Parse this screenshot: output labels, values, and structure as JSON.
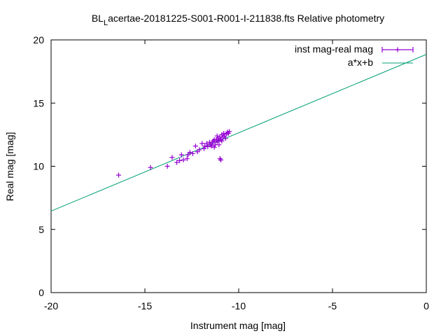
{
  "chart_data": {
    "type": "scatter",
    "title_prefix": "BL",
    "title_sub": "L",
    "title_rest": "acertae-20181225-S001-R001-I-211838.fts Relative photometry",
    "xlabel": "Instrument mag [mag]",
    "ylabel": "Real mag [mag]",
    "xlim": [
      -20,
      0
    ],
    "ylim": [
      0,
      20
    ],
    "x_ticks": [
      -20,
      -15,
      -10,
      -5,
      0
    ],
    "y_ticks": [
      0,
      5,
      10,
      15,
      20
    ],
    "x_tick_labels": [
      "-20",
      "-15",
      "-10",
      "-5",
      "0"
    ],
    "y_tick_labels": [
      "0",
      "5",
      "10",
      "15",
      "20"
    ],
    "grid": false,
    "legend_position": "top-right",
    "colors": {
      "points": "#9400d3",
      "fit": "#009e73",
      "axes": "#000000"
    },
    "series": [
      {
        "name": "inst mag-real mag",
        "kind": "points",
        "points": [
          [
            -16.4,
            9.3
          ],
          [
            -14.7,
            9.9
          ],
          [
            -13.8,
            10.0
          ],
          [
            -13.55,
            10.7
          ],
          [
            -13.3,
            10.3
          ],
          [
            -13.15,
            10.45
          ],
          [
            -13.05,
            10.9
          ],
          [
            -12.95,
            10.5
          ],
          [
            -12.75,
            10.6
          ],
          [
            -12.7,
            10.9
          ],
          [
            -12.6,
            11.1
          ],
          [
            -12.45,
            11.0
          ],
          [
            -12.3,
            11.6
          ],
          [
            -12.2,
            11.15
          ],
          [
            -12.1,
            11.3
          ],
          [
            -11.95,
            11.8
          ],
          [
            -11.85,
            11.4
          ],
          [
            -11.8,
            11.6
          ],
          [
            -11.7,
            11.8
          ],
          [
            -11.65,
            11.55
          ],
          [
            -11.55,
            11.9
          ],
          [
            -11.5,
            11.7
          ],
          [
            -11.45,
            11.6
          ],
          [
            -11.4,
            11.85
          ],
          [
            -11.35,
            12.0
          ],
          [
            -11.3,
            11.5
          ],
          [
            -11.25,
            11.7
          ],
          [
            -11.2,
            12.1
          ],
          [
            -11.15,
            11.9
          ],
          [
            -11.1,
            12.2
          ],
          [
            -11.05,
            12.0
          ],
          [
            -11.0,
            12.3
          ],
          [
            -10.95,
            12.1
          ],
          [
            -10.9,
            12.5
          ],
          [
            -10.85,
            12.3
          ],
          [
            -10.8,
            12.6
          ],
          [
            -10.75,
            12.4
          ],
          [
            -10.7,
            12.2
          ],
          [
            -10.65,
            12.55
          ],
          [
            -10.6,
            12.7
          ],
          [
            -10.55,
            12.6
          ],
          [
            -10.5,
            12.75
          ],
          [
            -11.0,
            10.6
          ],
          [
            -10.95,
            10.5
          ],
          [
            -11.3,
            12.1
          ],
          [
            -11.15,
            12.4
          ],
          [
            -11.05,
            11.7
          ],
          [
            -10.9,
            12.0
          ]
        ]
      },
      {
        "name": "a*x+b",
        "kind": "line",
        "line": [
          [
            -20,
            6.45
          ],
          [
            0,
            18.85
          ]
        ]
      }
    ]
  }
}
